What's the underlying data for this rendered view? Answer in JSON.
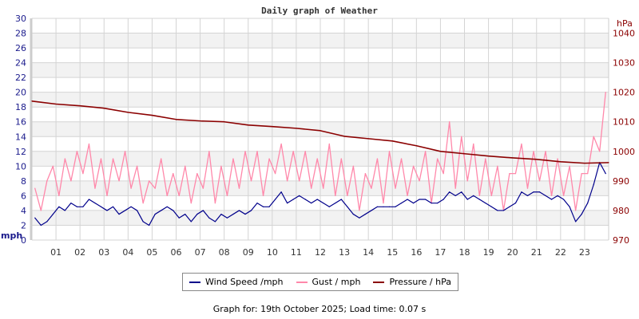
{
  "chart_data": {
    "type": "line",
    "title": "Daily graph of Weather",
    "ylabel_left": "mph",
    "ylabel_right": "hPa",
    "ylim_left": [
      0,
      30
    ],
    "ylim_right": [
      970,
      1045
    ],
    "yticks_left": [
      "0",
      "2",
      "4",
      "6",
      "8",
      "10",
      "12",
      "14",
      "16",
      "18",
      "20",
      "22",
      "24",
      "26",
      "28",
      "30"
    ],
    "yticks_right": [
      "970",
      "980",
      "990",
      "1000",
      "1010",
      "1020",
      "1030",
      "1040"
    ],
    "xticks": [
      "01",
      "02",
      "03",
      "04",
      "05",
      "06",
      "07",
      "08",
      "09",
      "10",
      "11",
      "12",
      "13",
      "14",
      "15",
      "16",
      "17",
      "18",
      "19",
      "20",
      "21",
      "22",
      "23"
    ],
    "xlim_hours": [
      0,
      24
    ],
    "grid": true,
    "colors": {
      "wind": "#00008b",
      "gust": "#ff88aa",
      "pressure": "#8b0000",
      "band": "#f2f2f2",
      "grid": "#d4d4d4"
    },
    "sample_interval_hours": 0.25,
    "series": [
      {
        "name": "Wind Speed /mph",
        "axis": "left",
        "values": [
          3,
          2,
          2.5,
          3.5,
          4.5,
          4,
          5,
          4.5,
          4.5,
          5.5,
          5,
          4.5,
          4,
          4.5,
          3.5,
          4,
          4.5,
          4,
          2.5,
          2,
          3.5,
          4,
          4.5,
          4,
          3,
          3.5,
          2.5,
          3.5,
          4,
          3,
          2.5,
          3.5,
          3,
          3.5,
          4,
          3.5,
          4,
          5,
          4.5,
          4.5,
          5.5,
          6.5,
          5,
          5.5,
          6,
          5.5,
          5,
          5.5,
          5,
          4.5,
          5,
          5.5,
          4.5,
          3.5,
          3,
          3.5,
          4,
          4.5,
          4.5,
          4.5,
          4.5,
          5,
          5.5,
          5,
          5.5,
          5.5,
          5,
          5,
          5.5,
          6.5,
          6,
          6.5,
          5.5,
          6,
          5.5,
          5,
          4.5,
          4,
          4,
          4.5,
          5,
          6.5,
          6,
          6.5,
          6.5,
          6,
          5.5,
          6,
          5.5,
          4.5,
          2.5,
          3.5,
          5,
          7.5,
          10.5,
          9
        ]
      },
      {
        "name": "Gust / mph",
        "axis": "left",
        "values": [
          7,
          4,
          8,
          10,
          6,
          11,
          8,
          12,
          9,
          13,
          7,
          11,
          6,
          11,
          8,
          12,
          7,
          10,
          5,
          8,
          7,
          11,
          6,
          9,
          6,
          10,
          5,
          9,
          7,
          12,
          5,
          10,
          6,
          11,
          7,
          12,
          8,
          12,
          6,
          11,
          9,
          13,
          8,
          12,
          8,
          12,
          7,
          11,
          7,
          13,
          6,
          11,
          6,
          10,
          4,
          9,
          7,
          11,
          5,
          12,
          7,
          11,
          6,
          10,
          8,
          12,
          5,
          11,
          9,
          16,
          7,
          14,
          8,
          13,
          6,
          11,
          6,
          10,
          4,
          9,
          9,
          13,
          7,
          12,
          8,
          12,
          6,
          11,
          6,
          10,
          4,
          9,
          9,
          14,
          12,
          20
        ]
      },
      {
        "name": "Pressure / hPa",
        "axis": "right",
        "hours": [
          0,
          1,
          2,
          3,
          4,
          5,
          6,
          7,
          8,
          9,
          10,
          11,
          12,
          13,
          14,
          15,
          16,
          17,
          18,
          19,
          20,
          21,
          22,
          23,
          24
        ],
        "values": [
          1017,
          1016,
          1015.4,
          1014.6,
          1013.2,
          1012.2,
          1010.8,
          1010.3,
          1010,
          1008.9,
          1008.4,
          1007.8,
          1007,
          1005.1,
          1004.3,
          1003.5,
          1001.9,
          1000,
          999.2,
          998.4,
          997.8,
          997.3,
          996.5,
          996,
          996.2
        ]
      }
    ]
  },
  "legend": {
    "wind": "Wind Speed /mph",
    "gust": "Gust / mph",
    "pressure": "Pressure / hPa"
  },
  "footer": "Graph for: 19th October 2025; Load time: 0.07 s"
}
